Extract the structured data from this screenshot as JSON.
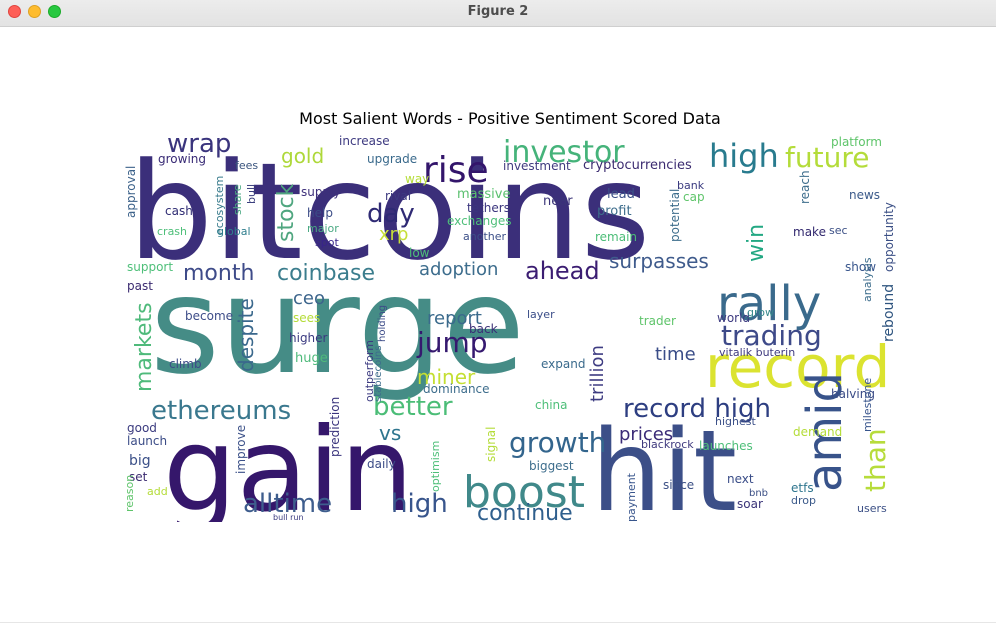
{
  "window": {
    "title": "Figure 2"
  },
  "chart_data": {
    "type": "wordcloud",
    "title": "Most Salient Words - Positive Sentiment Scored Data",
    "words": [
      {
        "text": "bitcoins",
        "color": "#3b2f7a"
      },
      {
        "text": "surge",
        "color": "#458c86"
      },
      {
        "text": "gain",
        "color": "#35176b"
      },
      {
        "text": "hit",
        "color": "#3c4f88"
      },
      {
        "text": "boost",
        "color": "#40898a"
      },
      {
        "text": "record",
        "color": "#dbe330"
      },
      {
        "text": "rally",
        "color": "#3a6a8c"
      },
      {
        "text": "amid",
        "color": "#38538a"
      },
      {
        "text": "rise",
        "color": "#33156b"
      },
      {
        "text": "investor",
        "color": "#45b37a"
      },
      {
        "text": "high",
        "color": "#287b8e"
      },
      {
        "text": "future",
        "color": "#b4dc3a"
      },
      {
        "text": "wrap",
        "color": "#3a347d"
      },
      {
        "text": "trading",
        "color": "#3e4a89"
      },
      {
        "text": "growth",
        "color": "#33658d"
      },
      {
        "text": "alltime",
        "color": "#3e5d8d"
      },
      {
        "text": "high",
        "color": "#38558c"
      },
      {
        "text": "continue",
        "color": "#2f5f8d"
      },
      {
        "text": "ethereums",
        "color": "#3a788e"
      },
      {
        "text": "better",
        "color": "#4bbd77"
      },
      {
        "text": "jump",
        "color": "#35196f"
      },
      {
        "text": "month",
        "color": "#3e4b89"
      },
      {
        "text": "coinbase",
        "color": "#3b7d8d"
      },
      {
        "text": "adoption",
        "color": "#3d6d8d"
      },
      {
        "text": "ahead",
        "color": "#3b1d72"
      },
      {
        "text": "surpasses",
        "color": "#3f5b8c"
      },
      {
        "text": "day",
        "color": "#2f2a74"
      },
      {
        "text": "xrp",
        "color": "#c6df37"
      },
      {
        "text": "stock",
        "color": "#4fa67f"
      },
      {
        "text": "gold",
        "color": "#aed83a"
      },
      {
        "text": "markets",
        "color": "#4fba7b"
      },
      {
        "text": "despite",
        "color": "#3a688c"
      },
      {
        "text": "record high",
        "color": "#2d3e81"
      },
      {
        "text": "win",
        "color": "#23a883"
      },
      {
        "text": "than",
        "color": "#b7dc3b"
      },
      {
        "text": "prices",
        "color": "#3b2b77"
      },
      {
        "text": "miner",
        "color": "#c4df33"
      },
      {
        "text": "report",
        "color": "#3a6a8c"
      },
      {
        "text": "trillion",
        "color": "#3e3c82"
      },
      {
        "text": "ceo",
        "color": "#3d658c"
      },
      {
        "text": "vs",
        "color": "#2e758e"
      },
      {
        "text": "time",
        "color": "#3a4d88"
      },
      {
        "text": "rebound",
        "color": "#2d537e"
      },
      {
        "text": "opportunity",
        "color": "#3b4f85"
      },
      {
        "text": "cryptocurrencies",
        "color": "#3b2b70"
      },
      {
        "text": "investment",
        "color": "#3f3a7e"
      },
      {
        "text": "increase",
        "color": "#3d3a80"
      },
      {
        "text": "upgrade",
        "color": "#3a6a8c"
      },
      {
        "text": "growing",
        "color": "#382a75"
      },
      {
        "text": "approval",
        "color": "#3a6089"
      },
      {
        "text": "cash",
        "color": "#2f2c73"
      },
      {
        "text": "crash",
        "color": "#4ebf79"
      },
      {
        "text": "ecosystem",
        "color": "#387b8c"
      },
      {
        "text": "share",
        "color": "#4aa983"
      },
      {
        "text": "bull",
        "color": "#3b3f7e"
      },
      {
        "text": "global",
        "color": "#2f7e8d"
      },
      {
        "text": "fees",
        "color": "#3a547e"
      },
      {
        "text": "supply",
        "color": "#3d2f7a"
      },
      {
        "text": "help",
        "color": "#3a4b86"
      },
      {
        "text": "major",
        "color": "#4aa983"
      },
      {
        "text": "spot",
        "color": "#38248a"
      },
      {
        "text": "rival",
        "color": "#3d3a80"
      },
      {
        "text": "way",
        "color": "#b5dc38"
      },
      {
        "text": "massive",
        "color": "#5ac06e"
      },
      {
        "text": "tethers",
        "color": "#3a347d"
      },
      {
        "text": "exchanges",
        "color": "#4ebf79"
      },
      {
        "text": "another",
        "color": "#3c4f88"
      },
      {
        "text": "near",
        "color": "#3a3478"
      },
      {
        "text": "lead",
        "color": "#3b5088"
      },
      {
        "text": "profit",
        "color": "#3e6d8c"
      },
      {
        "text": "remain",
        "color": "#4bbd77"
      },
      {
        "text": "potential",
        "color": "#3d6d8c"
      },
      {
        "text": "cap",
        "color": "#5ec46a"
      },
      {
        "text": "bank",
        "color": "#3a3a7f"
      },
      {
        "text": "low",
        "color": "#4ebf79"
      },
      {
        "text": "make",
        "color": "#32286e"
      },
      {
        "text": "sec",
        "color": "#3b4f85"
      },
      {
        "text": "reach",
        "color": "#3d6d8c"
      },
      {
        "text": "platform",
        "color": "#5ec46a"
      },
      {
        "text": "news",
        "color": "#3b5a8a"
      },
      {
        "text": "show",
        "color": "#38558c"
      },
      {
        "text": "support",
        "color": "#4ebf79"
      },
      {
        "text": "past",
        "color": "#3a2a70"
      },
      {
        "text": "become",
        "color": "#3d4c88"
      },
      {
        "text": "higher",
        "color": "#3b3a80"
      },
      {
        "text": "huge",
        "color": "#4fba7b"
      },
      {
        "text": "climb",
        "color": "#3d4c88"
      },
      {
        "text": "back",
        "color": "#3a2f76"
      },
      {
        "text": "layer",
        "color": "#3a4d88"
      },
      {
        "text": "trader",
        "color": "#5ec46a"
      },
      {
        "text": "world",
        "color": "#3d3a80"
      },
      {
        "text": "grow",
        "color": "#388a8c"
      },
      {
        "text": "vitalik buterin",
        "color": "#3e3a7f"
      },
      {
        "text": "analysis",
        "color": "#3d6d8c"
      },
      {
        "text": "halving",
        "color": "#3a4b86"
      },
      {
        "text": "milestone",
        "color": "#38558c"
      },
      {
        "text": "expand",
        "color": "#3a6a8c"
      },
      {
        "text": "dominance",
        "color": "#3d6d8c"
      },
      {
        "text": "china",
        "color": "#4ebf79"
      },
      {
        "text": "launches",
        "color": "#4ebf79"
      },
      {
        "text": "highest",
        "color": "#3b5088"
      },
      {
        "text": "demand",
        "color": "#b4dc38"
      },
      {
        "text": "blackrock",
        "color": "#3f3a7e"
      },
      {
        "text": "next",
        "color": "#3a4d88"
      },
      {
        "text": "etfs",
        "color": "#2e758e"
      },
      {
        "text": "drop",
        "color": "#3b5a8a"
      },
      {
        "text": "users",
        "color": "#3b4f85"
      },
      {
        "text": "soar",
        "color": "#3a3478"
      },
      {
        "text": "bnb",
        "color": "#3b4f85"
      },
      {
        "text": "since",
        "color": "#3b4f85"
      },
      {
        "text": "payment",
        "color": "#38558c"
      },
      {
        "text": "biggest",
        "color": "#3d6d8c"
      },
      {
        "text": "daily",
        "color": "#3a4b86"
      },
      {
        "text": "optimism",
        "color": "#4ebf79"
      },
      {
        "text": "signal",
        "color": "#b4dc38"
      },
      {
        "text": "prediction",
        "color": "#3a347d"
      },
      {
        "text": "improve",
        "color": "#3b5088"
      },
      {
        "text": "launch",
        "color": "#3a4b86"
      },
      {
        "text": "good",
        "color": "#3a3a7f"
      },
      {
        "text": "big",
        "color": "#3b5088"
      },
      {
        "text": "set",
        "color": "#3a2a70"
      },
      {
        "text": "add",
        "color": "#b4dc38"
      },
      {
        "text": "reason",
        "color": "#5ec46a"
      },
      {
        "text": "outperform",
        "color": "#3b3a80"
      },
      {
        "text": "holding",
        "color": "#3d4c88"
      },
      {
        "text": "stablecoins",
        "color": "#3d6d8c"
      },
      {
        "text": "sees",
        "color": "#b4dc38"
      },
      {
        "text": "bull run",
        "color": "#3a3a7f"
      }
    ]
  }
}
